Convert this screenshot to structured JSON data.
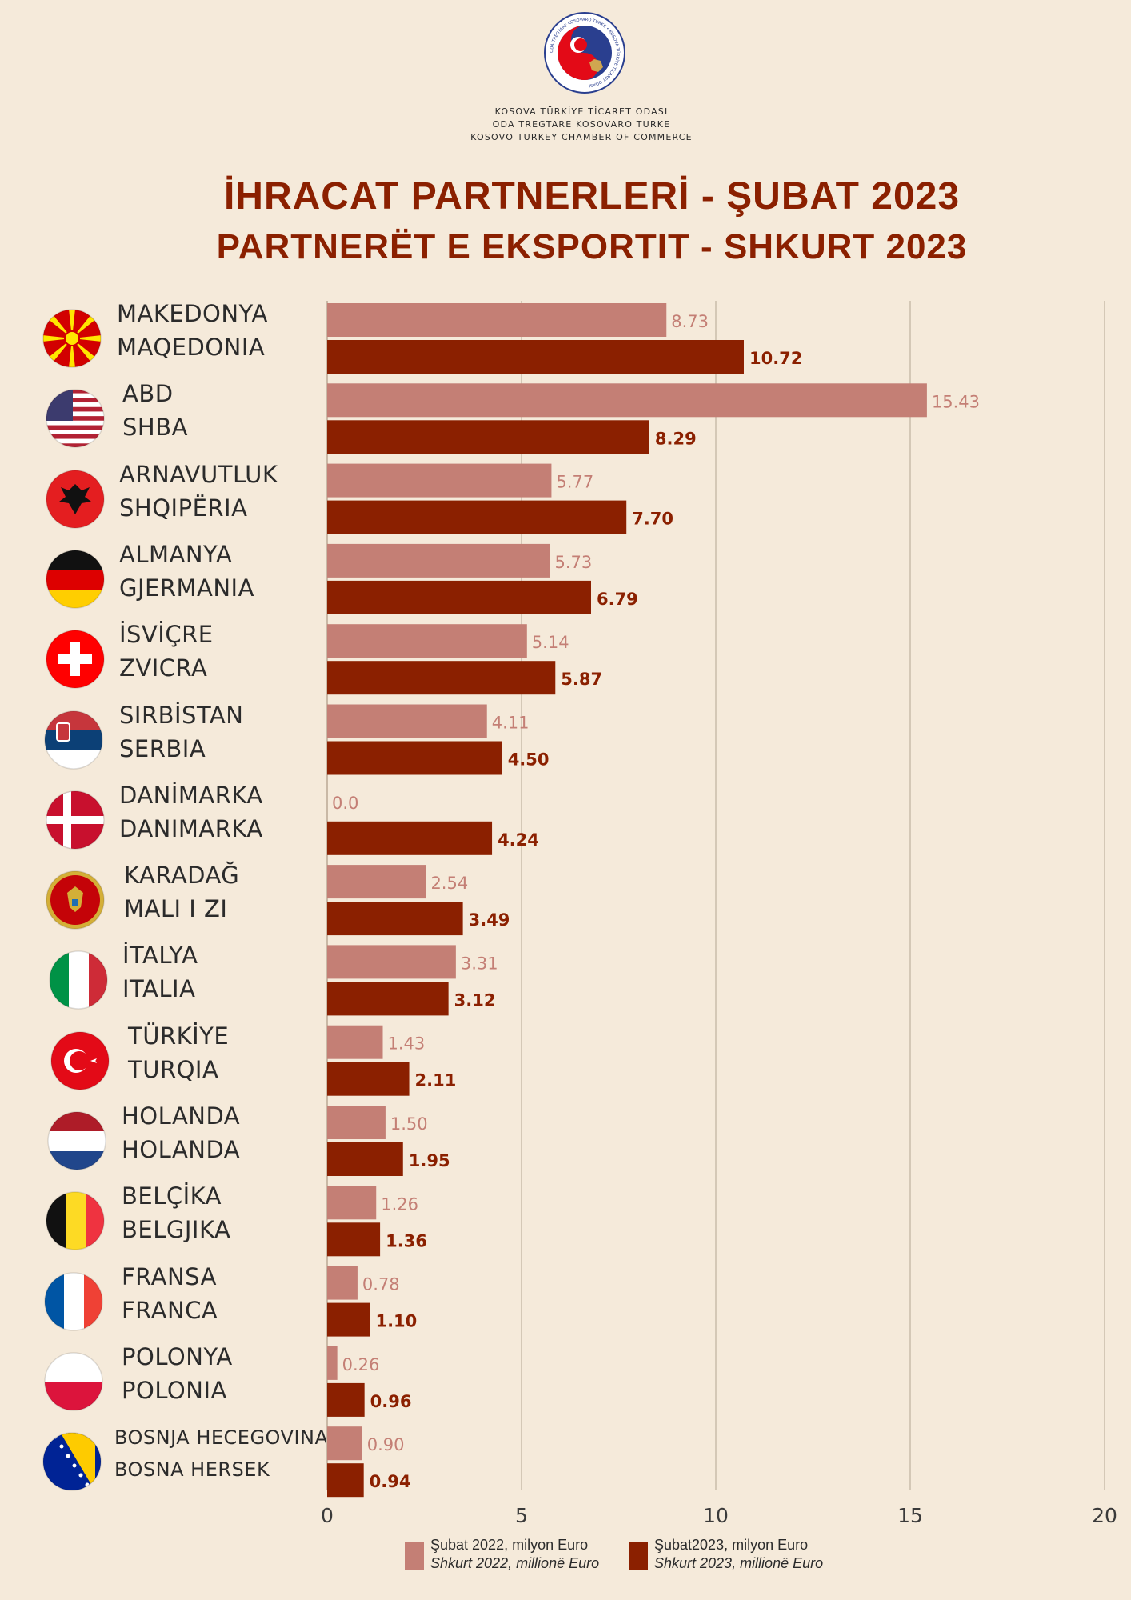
{
  "header": {
    "org_lines": [
      "KOSOVA TÜRKİYE TİCARET ODASI",
      "ODA TREGTARE KOSOVARO TURKE",
      "KOSOVO TURKEY CHAMBER OF COMMERCE"
    ],
    "logo_ring_text": "ODA TREGTARE KOSOVARO TURKE • KOSOVA TÜRKİYE TİCARET ODASI",
    "title_tr": "İHRACAT PARTNERLERİ - ŞUBAT 2023",
    "title_sq": "PARTNERËT E EKSPORTIT - SHKURT 2023"
  },
  "colors": {
    "background": "#f5eada",
    "series_2022": "#c47f75",
    "series_2023": "#8b2000",
    "title": "#8b2000"
  },
  "chart_data": {
    "type": "bar",
    "orientation": "horizontal",
    "categories": [
      {
        "tr": "MAKEDONYA",
        "sq": "MAQEDONIA",
        "flag": "north-macedonia-flag-icon"
      },
      {
        "tr": "ABD",
        "sq": "SHBA",
        "flag": "usa-flag-icon"
      },
      {
        "tr": "ARNAVUTLUK",
        "sq": "SHQIPËRIA",
        "flag": "albania-flag-icon"
      },
      {
        "tr": "ALMANYA",
        "sq": "GJERMANIA",
        "flag": "germany-flag-icon"
      },
      {
        "tr": "İSVİÇRE",
        "sq": "ZVICRA",
        "flag": "switzerland-flag-icon"
      },
      {
        "tr": "SIRBİSTAN",
        "sq": "SERBIA",
        "flag": "serbia-flag-icon"
      },
      {
        "tr": "DANİMARKA",
        "sq": "DANIMARKA",
        "flag": "denmark-flag-icon"
      },
      {
        "tr": "KARADAĞ",
        "sq": "MALI I ZI",
        "flag": "montenegro-flag-icon"
      },
      {
        "tr": "İTALYA",
        "sq": "ITALIA",
        "flag": "italy-flag-icon"
      },
      {
        "tr": "TÜRKİYE",
        "sq": "TURQIA",
        "flag": "turkey-flag-icon"
      },
      {
        "tr": "HOLANDA",
        "sq": "HOLANDA",
        "flag": "netherlands-flag-icon"
      },
      {
        "tr": "BELÇİKA",
        "sq": "BELGJIKA",
        "flag": "belgium-flag-icon"
      },
      {
        "tr": "FRANSA",
        "sq": "FRANCA",
        "flag": "france-flag-icon"
      },
      {
        "tr": "POLONYA",
        "sq": "POLONIA",
        "flag": "poland-flag-icon"
      },
      {
        "tr": "BOSNJA HECEGOVINA",
        "sq": "BOSNA HERSEK",
        "flag": "bosnia-flag-icon"
      }
    ],
    "series": [
      {
        "name": "Şubat 2022, milyon Euro",
        "name_sq": "Shkurt 2022, millionë Euro",
        "values": [
          8.73,
          15.43,
          5.77,
          5.73,
          5.14,
          4.11,
          0.0,
          2.54,
          3.31,
          1.43,
          1.5,
          1.26,
          0.78,
          0.26,
          0.9
        ],
        "labels": [
          "8.73",
          "15.43",
          "5.77",
          "5.73",
          "5.14",
          "4.11",
          "0.0",
          "2.54",
          "3.31",
          "1.43",
          "1.50",
          "1.26",
          "0.78",
          "0.26",
          "0.90"
        ]
      },
      {
        "name": "Şubat2023, milyon Euro",
        "name_sq": "Shkurt 2023, millionë Euro",
        "values": [
          10.72,
          8.29,
          7.7,
          6.79,
          5.87,
          4.5,
          4.24,
          3.49,
          3.12,
          2.11,
          1.95,
          1.36,
          1.1,
          0.96,
          0.94
        ],
        "labels": [
          "10.72",
          "8.29",
          "7.70",
          "6.79",
          "5.87",
          "4.50",
          "4.24",
          "3.49",
          "3.12",
          "2.11",
          "1.95",
          "1.36",
          "1.10",
          "0.96",
          "0.94"
        ]
      }
    ],
    "xlim": [
      0,
      20
    ],
    "xticks": [
      "0",
      "5",
      "10",
      "15",
      "20"
    ],
    "grid": true,
    "legend_position": "bottom"
  }
}
